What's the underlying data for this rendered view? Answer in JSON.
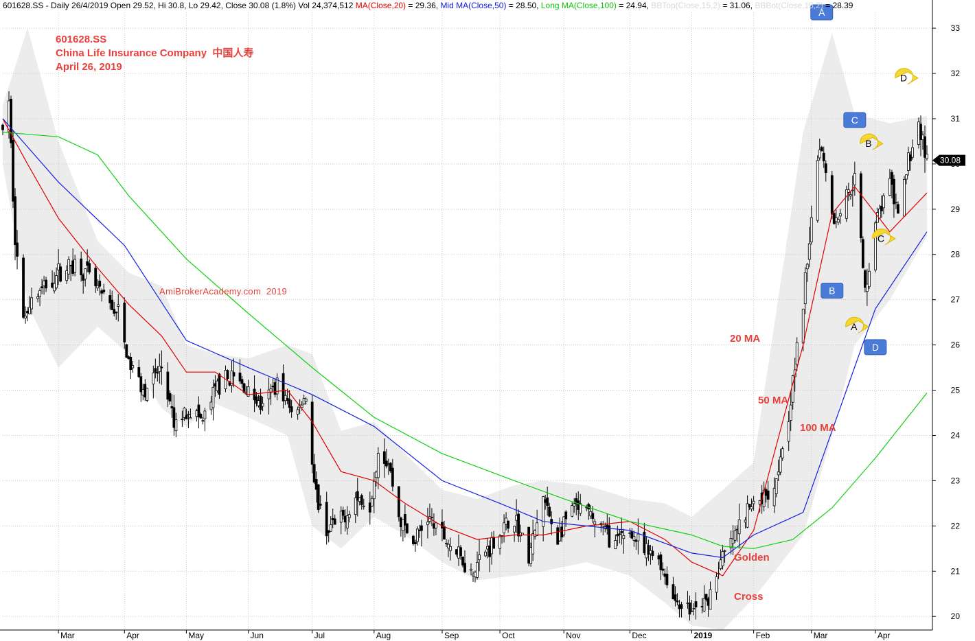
{
  "header": {
    "symbol": "601628.SS",
    "interval_date": " - Daily 26/4/2019 ",
    "quote": "Open 29.52, Hi 30.8, Lo 29.42, Close 30.08 (1.8%) Vol 24,374,512 ",
    "ma20_label": "MA(Close,20)",
    "ma20_value": " = 29.36, ",
    "ma50_label": "Mid MA(Close,50)",
    "ma50_value": " = 28.50, ",
    "ma100_label": "Long MA(Close,100)",
    "ma100_value": " = 24.94, ",
    "bbtop_label": "BBTop(Close,15,2)",
    "bbtop_value": " = 31.06, ",
    "bbbot_label": "BBBot(Close,15,2)",
    "bbbot_value": " = 28.39"
  },
  "title": {
    "line1": "601628.SS",
    "line2": "China Life Insurance Company  中国人寿",
    "line3": "April 26, 2019"
  },
  "watermark": "AmiBrokerAcademy.com  2019",
  "annotations": {
    "ma20": "20 MA",
    "ma50": "50 MA",
    "ma100": "100 MA",
    "golden_cross_1": "Golden",
    "golden_cross_2": "Cross"
  },
  "price_tag": "30.08",
  "colors": {
    "ma20": "#e00000",
    "ma50": "#1020e0",
    "ma100": "#10d010",
    "bband_fill": "#e6e6e6",
    "candle": "#000000",
    "annotation_text": "#e8403a",
    "box_marker": "#4a7bd8",
    "bubble_marker": "#f7d731",
    "grid": "#c8c8c8"
  },
  "chart_data": {
    "type": "candlestick",
    "y_axis": {
      "min": 19.7,
      "max": 33.35,
      "ticks": [
        20,
        21,
        22,
        23,
        24,
        25,
        26,
        27,
        28,
        29,
        30,
        31,
        32,
        33
      ]
    },
    "x_axis": {
      "range": [
        "2018-02-02",
        "2019-04-26"
      ],
      "ticks": [
        {
          "label": "Mar",
          "date": "2018-03-01",
          "bold": false
        },
        {
          "label": "Apr",
          "date": "2018-04-02",
          "bold": false
        },
        {
          "label": "May",
          "date": "2018-05-02",
          "bold": false
        },
        {
          "label": "Jun",
          "date": "2018-06-01",
          "bold": false
        },
        {
          "label": "Jul",
          "date": "2018-07-02",
          "bold": false
        },
        {
          "label": "Aug",
          "date": "2018-08-01",
          "bold": false
        },
        {
          "label": "Sep",
          "date": "2018-09-03",
          "bold": false
        },
        {
          "label": "Oct",
          "date": "2018-10-01",
          "bold": false
        },
        {
          "label": "Nov",
          "date": "2018-11-01",
          "bold": false
        },
        {
          "label": "Dec",
          "date": "2018-12-03",
          "bold": false
        },
        {
          "label": "2019",
          "date": "2019-01-02",
          "bold": true
        },
        {
          "label": "Feb",
          "date": "2019-02-01",
          "bold": false
        },
        {
          "label": "Mar",
          "date": "2019-03-01",
          "bold": false
        },
        {
          "label": "Apr",
          "date": "2019-04-01",
          "bold": false
        }
      ]
    },
    "grid": true,
    "series": [
      {
        "name": "MA(Close,20)",
        "color": "#e00000",
        "points": [
          [
            "2018-02-02",
            31.0
          ],
          [
            "2018-02-14",
            30.0
          ],
          [
            "2018-03-01",
            28.8
          ],
          [
            "2018-03-20",
            27.7
          ],
          [
            "2018-04-04",
            26.9
          ],
          [
            "2018-04-20",
            26.2
          ],
          [
            "2018-05-02",
            25.4
          ],
          [
            "2018-05-16",
            25.4
          ],
          [
            "2018-06-01",
            24.9
          ],
          [
            "2018-06-20",
            25.0
          ],
          [
            "2018-07-02",
            24.3
          ],
          [
            "2018-07-16",
            23.2
          ],
          [
            "2018-08-01",
            23.0
          ],
          [
            "2018-08-16",
            22.5
          ],
          [
            "2018-09-03",
            22.0
          ],
          [
            "2018-09-20",
            21.7
          ],
          [
            "2018-10-08",
            21.8
          ],
          [
            "2018-10-22",
            21.8
          ],
          [
            "2018-11-12",
            22.0
          ],
          [
            "2018-12-03",
            22.1
          ],
          [
            "2018-12-20",
            21.7
          ],
          [
            "2019-01-02",
            21.2
          ],
          [
            "2019-01-17",
            20.9
          ],
          [
            "2019-02-01",
            21.9
          ],
          [
            "2019-02-25",
            26.0
          ],
          [
            "2019-03-11",
            28.9
          ],
          [
            "2019-03-22",
            29.5
          ],
          [
            "2019-04-08",
            28.5
          ],
          [
            "2019-04-26",
            29.36
          ]
        ]
      },
      {
        "name": "Mid MA(Close,50)",
        "color": "#1020e0",
        "points": [
          [
            "2018-02-02",
            31.0
          ],
          [
            "2018-03-01",
            29.6
          ],
          [
            "2018-04-02",
            28.2
          ],
          [
            "2018-05-02",
            26.1
          ],
          [
            "2018-06-01",
            25.5
          ],
          [
            "2018-07-02",
            24.9
          ],
          [
            "2018-08-01",
            24.2
          ],
          [
            "2018-09-03",
            23.0
          ],
          [
            "2018-10-01",
            22.5
          ],
          [
            "2018-10-22",
            22.1
          ],
          [
            "2018-11-12",
            22.0
          ],
          [
            "2018-12-03",
            21.9
          ],
          [
            "2019-01-02",
            21.4
          ],
          [
            "2019-01-17",
            21.3
          ],
          [
            "2019-02-01",
            21.8
          ],
          [
            "2019-02-25",
            22.3
          ],
          [
            "2019-03-18",
            25.0
          ],
          [
            "2019-04-01",
            26.8
          ],
          [
            "2019-04-26",
            28.5
          ]
        ]
      },
      {
        "name": "Long MA(Close,100)",
        "color": "#10d010",
        "points": [
          [
            "2018-02-02",
            30.7
          ],
          [
            "2018-03-01",
            30.6
          ],
          [
            "2018-03-20",
            30.2
          ],
          [
            "2018-04-04",
            29.3
          ],
          [
            "2018-05-02",
            27.9
          ],
          [
            "2018-06-01",
            26.7
          ],
          [
            "2018-07-02",
            25.5
          ],
          [
            "2018-08-01",
            24.4
          ],
          [
            "2018-09-03",
            23.6
          ],
          [
            "2018-10-08",
            23.0
          ],
          [
            "2018-11-01",
            22.6
          ],
          [
            "2018-12-03",
            22.1
          ],
          [
            "2019-01-02",
            21.8
          ],
          [
            "2019-01-17",
            21.55
          ],
          [
            "2019-02-01",
            21.5
          ],
          [
            "2019-02-20",
            21.7
          ],
          [
            "2019-03-11",
            22.4
          ],
          [
            "2019-04-01",
            23.5
          ],
          [
            "2019-04-26",
            24.94
          ]
        ]
      },
      {
        "name": "BBTop(Close,15,2)",
        "color": "#e6e6e6",
        "points": [
          [
            "2018-02-02",
            31.3
          ],
          [
            "2018-02-14",
            33.0
          ],
          [
            "2018-03-01",
            30.5
          ],
          [
            "2018-03-20",
            28.3
          ],
          [
            "2018-04-04",
            27.6
          ],
          [
            "2018-04-20",
            27.3
          ],
          [
            "2018-05-02",
            26.0
          ],
          [
            "2018-05-16",
            25.8
          ],
          [
            "2018-06-01",
            25.7
          ],
          [
            "2018-06-20",
            26.0
          ],
          [
            "2018-07-02",
            25.8
          ],
          [
            "2018-07-16",
            24.1
          ],
          [
            "2018-08-01",
            24.3
          ],
          [
            "2018-08-16",
            23.6
          ],
          [
            "2018-09-03",
            22.8
          ],
          [
            "2018-09-20",
            22.6
          ],
          [
            "2018-10-08",
            22.9
          ],
          [
            "2018-10-22",
            23.0
          ],
          [
            "2018-11-12",
            22.9
          ],
          [
            "2018-12-03",
            22.6
          ],
          [
            "2018-12-20",
            22.5
          ],
          [
            "2019-01-02",
            22.2
          ],
          [
            "2019-01-17",
            22.8
          ],
          [
            "2019-02-01",
            23.4
          ],
          [
            "2019-02-25",
            30.7
          ],
          [
            "2019-03-11",
            32.9
          ],
          [
            "2019-03-22",
            31.1
          ],
          [
            "2019-04-08",
            30.9
          ],
          [
            "2019-04-26",
            31.06
          ]
        ]
      },
      {
        "name": "BBBot(Close,15,2)",
        "color": "#e6e6e6",
        "points": [
          [
            "2018-02-02",
            30.0
          ],
          [
            "2018-02-14",
            26.9
          ],
          [
            "2018-03-01",
            25.5
          ],
          [
            "2018-03-20",
            26.4
          ],
          [
            "2018-04-04",
            25.8
          ],
          [
            "2018-04-20",
            24.6
          ],
          [
            "2018-05-02",
            24.2
          ],
          [
            "2018-05-16",
            24.7
          ],
          [
            "2018-06-01",
            24.4
          ],
          [
            "2018-06-20",
            24.0
          ],
          [
            "2018-07-02",
            22.0
          ],
          [
            "2018-07-16",
            21.5
          ],
          [
            "2018-08-01",
            22.2
          ],
          [
            "2018-08-16",
            21.8
          ],
          [
            "2018-09-03",
            21.2
          ],
          [
            "2018-09-20",
            20.8
          ],
          [
            "2018-10-08",
            20.9
          ],
          [
            "2018-10-22",
            21.0
          ],
          [
            "2018-11-12",
            21.2
          ],
          [
            "2018-12-03",
            20.9
          ],
          [
            "2018-12-20",
            20.3
          ],
          [
            "2019-01-02",
            19.8
          ],
          [
            "2019-01-17",
            19.7
          ],
          [
            "2019-02-01",
            20.4
          ],
          [
            "2019-02-25",
            21.8
          ],
          [
            "2019-03-11",
            24.0
          ],
          [
            "2019-03-22",
            26.0
          ],
          [
            "2019-04-08",
            27.0
          ],
          [
            "2019-04-26",
            28.39
          ]
        ]
      }
    ],
    "price_path": [
      [
        "2018-02-02",
        30.8
      ],
      [
        "2018-02-05",
        31.3
      ],
      [
        "2018-02-08",
        28.4
      ],
      [
        "2018-02-12",
        26.5
      ],
      [
        "2018-02-14",
        26.9
      ],
      [
        "2018-02-23",
        27.3
      ],
      [
        "2018-03-01",
        27.6
      ],
      [
        "2018-03-09",
        27.8
      ],
      [
        "2018-03-16",
        27.5
      ],
      [
        "2018-03-23",
        27.0
      ],
      [
        "2018-03-30",
        26.7
      ],
      [
        "2018-04-04",
        25.6
      ],
      [
        "2018-04-12",
        25.0
      ],
      [
        "2018-04-20",
        25.5
      ],
      [
        "2018-04-26",
        24.2
      ],
      [
        "2018-05-03",
        24.6
      ],
      [
        "2018-05-10",
        24.3
      ],
      [
        "2018-05-17",
        25.1
      ],
      [
        "2018-05-24",
        25.3
      ],
      [
        "2018-06-01",
        25.0
      ],
      [
        "2018-06-08",
        24.6
      ],
      [
        "2018-06-15",
        25.2
      ],
      [
        "2018-06-22",
        24.5
      ],
      [
        "2018-06-29",
        24.9
      ],
      [
        "2018-07-03",
        22.8
      ],
      [
        "2018-07-09",
        21.9
      ],
      [
        "2018-07-16",
        22.1
      ],
      [
        "2018-07-23",
        22.6
      ],
      [
        "2018-07-30",
        22.5
      ],
      [
        "2018-08-03",
        23.7
      ],
      [
        "2018-08-08",
        23.4
      ],
      [
        "2018-08-13",
        22.2
      ],
      [
        "2018-08-20",
        21.6
      ],
      [
        "2018-08-27",
        22.2
      ],
      [
        "2018-09-03",
        21.8
      ],
      [
        "2018-09-10",
        21.4
      ],
      [
        "2018-09-17",
        21.0
      ],
      [
        "2018-09-25",
        21.5
      ],
      [
        "2018-10-08",
        22.2
      ],
      [
        "2018-10-15",
        21.3
      ],
      [
        "2018-10-22",
        22.6
      ],
      [
        "2018-10-29",
        21.7
      ],
      [
        "2018-11-05",
        22.4
      ],
      [
        "2018-11-12",
        22.3
      ],
      [
        "2018-11-19",
        22.0
      ],
      [
        "2018-11-26",
        21.6
      ],
      [
        "2018-12-03",
        21.9
      ],
      [
        "2018-12-10",
        21.4
      ],
      [
        "2018-12-17",
        21.3
      ],
      [
        "2018-12-24",
        20.4
      ],
      [
        "2019-01-02",
        20.1
      ],
      [
        "2019-01-09",
        20.3
      ],
      [
        "2019-01-16",
        21.2
      ],
      [
        "2019-01-23",
        21.8
      ],
      [
        "2019-01-30",
        22.4
      ],
      [
        "2019-02-11",
        22.9
      ],
      [
        "2019-02-18",
        24.5
      ],
      [
        "2019-02-25",
        26.9
      ],
      [
        "2019-03-01",
        28.9
      ],
      [
        "2019-03-05",
        30.5
      ],
      [
        "2019-03-08",
        29.9
      ],
      [
        "2019-03-12",
        28.7
      ],
      [
        "2019-03-18",
        29.3
      ],
      [
        "2019-03-22",
        29.7
      ],
      [
        "2019-03-27",
        27.2
      ],
      [
        "2019-04-01",
        28.7
      ],
      [
        "2019-04-08",
        29.6
      ],
      [
        "2019-04-12",
        28.8
      ],
      [
        "2019-04-17",
        30.1
      ],
      [
        "2019-04-22",
        30.9
      ],
      [
        "2019-04-26",
        30.08
      ]
    ],
    "markers": [
      {
        "shape": "box",
        "label": "A",
        "date": "2019-03-06",
        "value": 33.35
      },
      {
        "shape": "box",
        "label": "B",
        "date": "2019-03-11",
        "value": 27.2
      },
      {
        "shape": "box",
        "label": "C",
        "date": "2019-03-22",
        "value": 30.97
      },
      {
        "shape": "box",
        "label": "D",
        "date": "2019-04-01",
        "value": 25.95
      },
      {
        "shape": "bubble",
        "label": "A",
        "date": "2019-03-22",
        "value": 26.4
      },
      {
        "shape": "bubble",
        "label": "B",
        "date": "2019-03-29",
        "value": 30.45
      },
      {
        "shape": "bubble",
        "label": "C",
        "date": "2019-04-04",
        "value": 28.35
      },
      {
        "shape": "bubble",
        "label": "D",
        "date": "2019-04-15",
        "value": 31.9
      }
    ]
  }
}
